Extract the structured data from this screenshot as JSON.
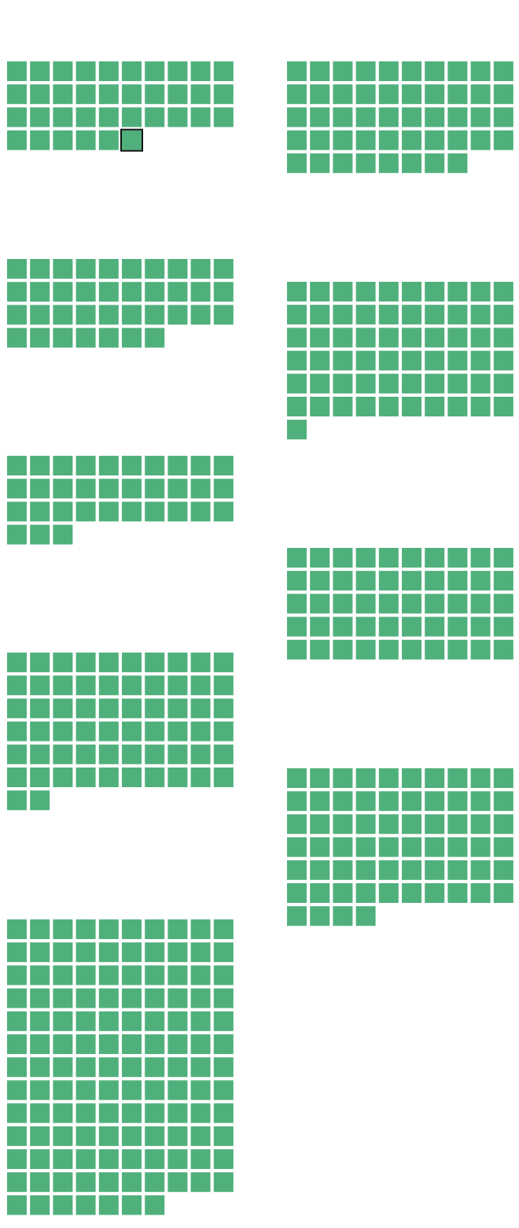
{
  "chart_data": {
    "type": "waffle",
    "columns_per_row": 10,
    "colors": {
      "cell_fill": "#50b07c",
      "selected_outline": "#111111",
      "background": "#ffffff"
    },
    "groups": [
      {
        "column": "left",
        "count": 36
      },
      {
        "column": "left",
        "count": 37
      },
      {
        "column": "left",
        "count": 33
      },
      {
        "column": "left",
        "count": 62
      },
      {
        "column": "left",
        "count": 127
      },
      {
        "column": "right",
        "count": 48
      },
      {
        "column": "right",
        "count": 61
      },
      {
        "column": "right",
        "count": 50
      },
      {
        "column": "right",
        "count": 64
      }
    ],
    "selected": {
      "group_index": 0,
      "cell_index": 35
    }
  }
}
